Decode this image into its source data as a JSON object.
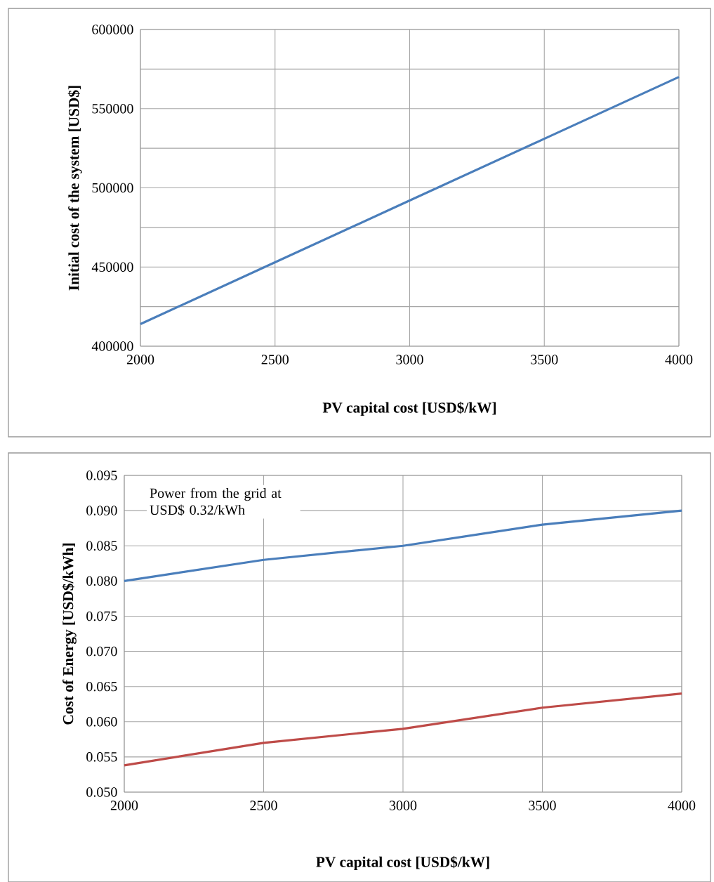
{
  "chart_data": [
    {
      "type": "line",
      "xlabel": "PV capital cost [USD$/kW]",
      "ylabel": "Initial cost of the system [USD$]",
      "x": [
        2000,
        2500,
        3000,
        3500,
        4000
      ],
      "series": [
        {
          "color": "#4a7ebb",
          "values": [
            414000,
            453000,
            492000,
            531000,
            570000
          ]
        }
      ],
      "xlim": [
        2000,
        4000
      ],
      "xticks": [
        2000,
        2500,
        3000,
        3500,
        4000
      ],
      "ylim": [
        400000,
        600000
      ],
      "yticks": [
        400000,
        {
          "value": 425000,
          "label": null
        },
        450000,
        {
          "value": 475000,
          "label": null
        },
        500000,
        {
          "value": 525000,
          "label": null
        },
        550000,
        {
          "value": 575000,
          "label": null
        },
        600000
      ],
      "grid": true
    },
    {
      "type": "line",
      "xlabel": "PV capital cost [USD$/kW]",
      "ylabel": "Cost of Energy [USD$/kWh]",
      "annotations": [
        "Power from the grid at USD$ 0.32/kWh"
      ],
      "x": [
        2000,
        2500,
        3000,
        3500,
        4000
      ],
      "series": [
        {
          "color": "#4a7ebb",
          "values": [
            0.08,
            0.083,
            0.085,
            0.088,
            0.09
          ]
        },
        {
          "color": "#be4b48",
          "values": [
            0.0538,
            0.057,
            0.059,
            0.062,
            0.064
          ]
        }
      ],
      "xlim": [
        2000,
        4000
      ],
      "xticks": [
        2000,
        2500,
        3000,
        3500,
        4000
      ],
      "ylim": [
        0.05,
        0.095
      ],
      "yticks": [
        {
          "value": 0.05,
          "label": "0.050"
        },
        {
          "value": 0.055,
          "label": "0.055"
        },
        {
          "value": 0.06,
          "label": "0.060"
        },
        {
          "value": 0.065,
          "label": "0.065"
        },
        {
          "value": 0.07,
          "label": "0.070"
        },
        {
          "value": 0.075,
          "label": "0.075"
        },
        {
          "value": 0.08,
          "label": "0.080"
        },
        {
          "value": 0.085,
          "label": "0.085"
        },
        {
          "value": 0.09,
          "label": "0.090"
        },
        {
          "value": 0.095,
          "label": "0.095"
        }
      ],
      "grid": true
    }
  ]
}
